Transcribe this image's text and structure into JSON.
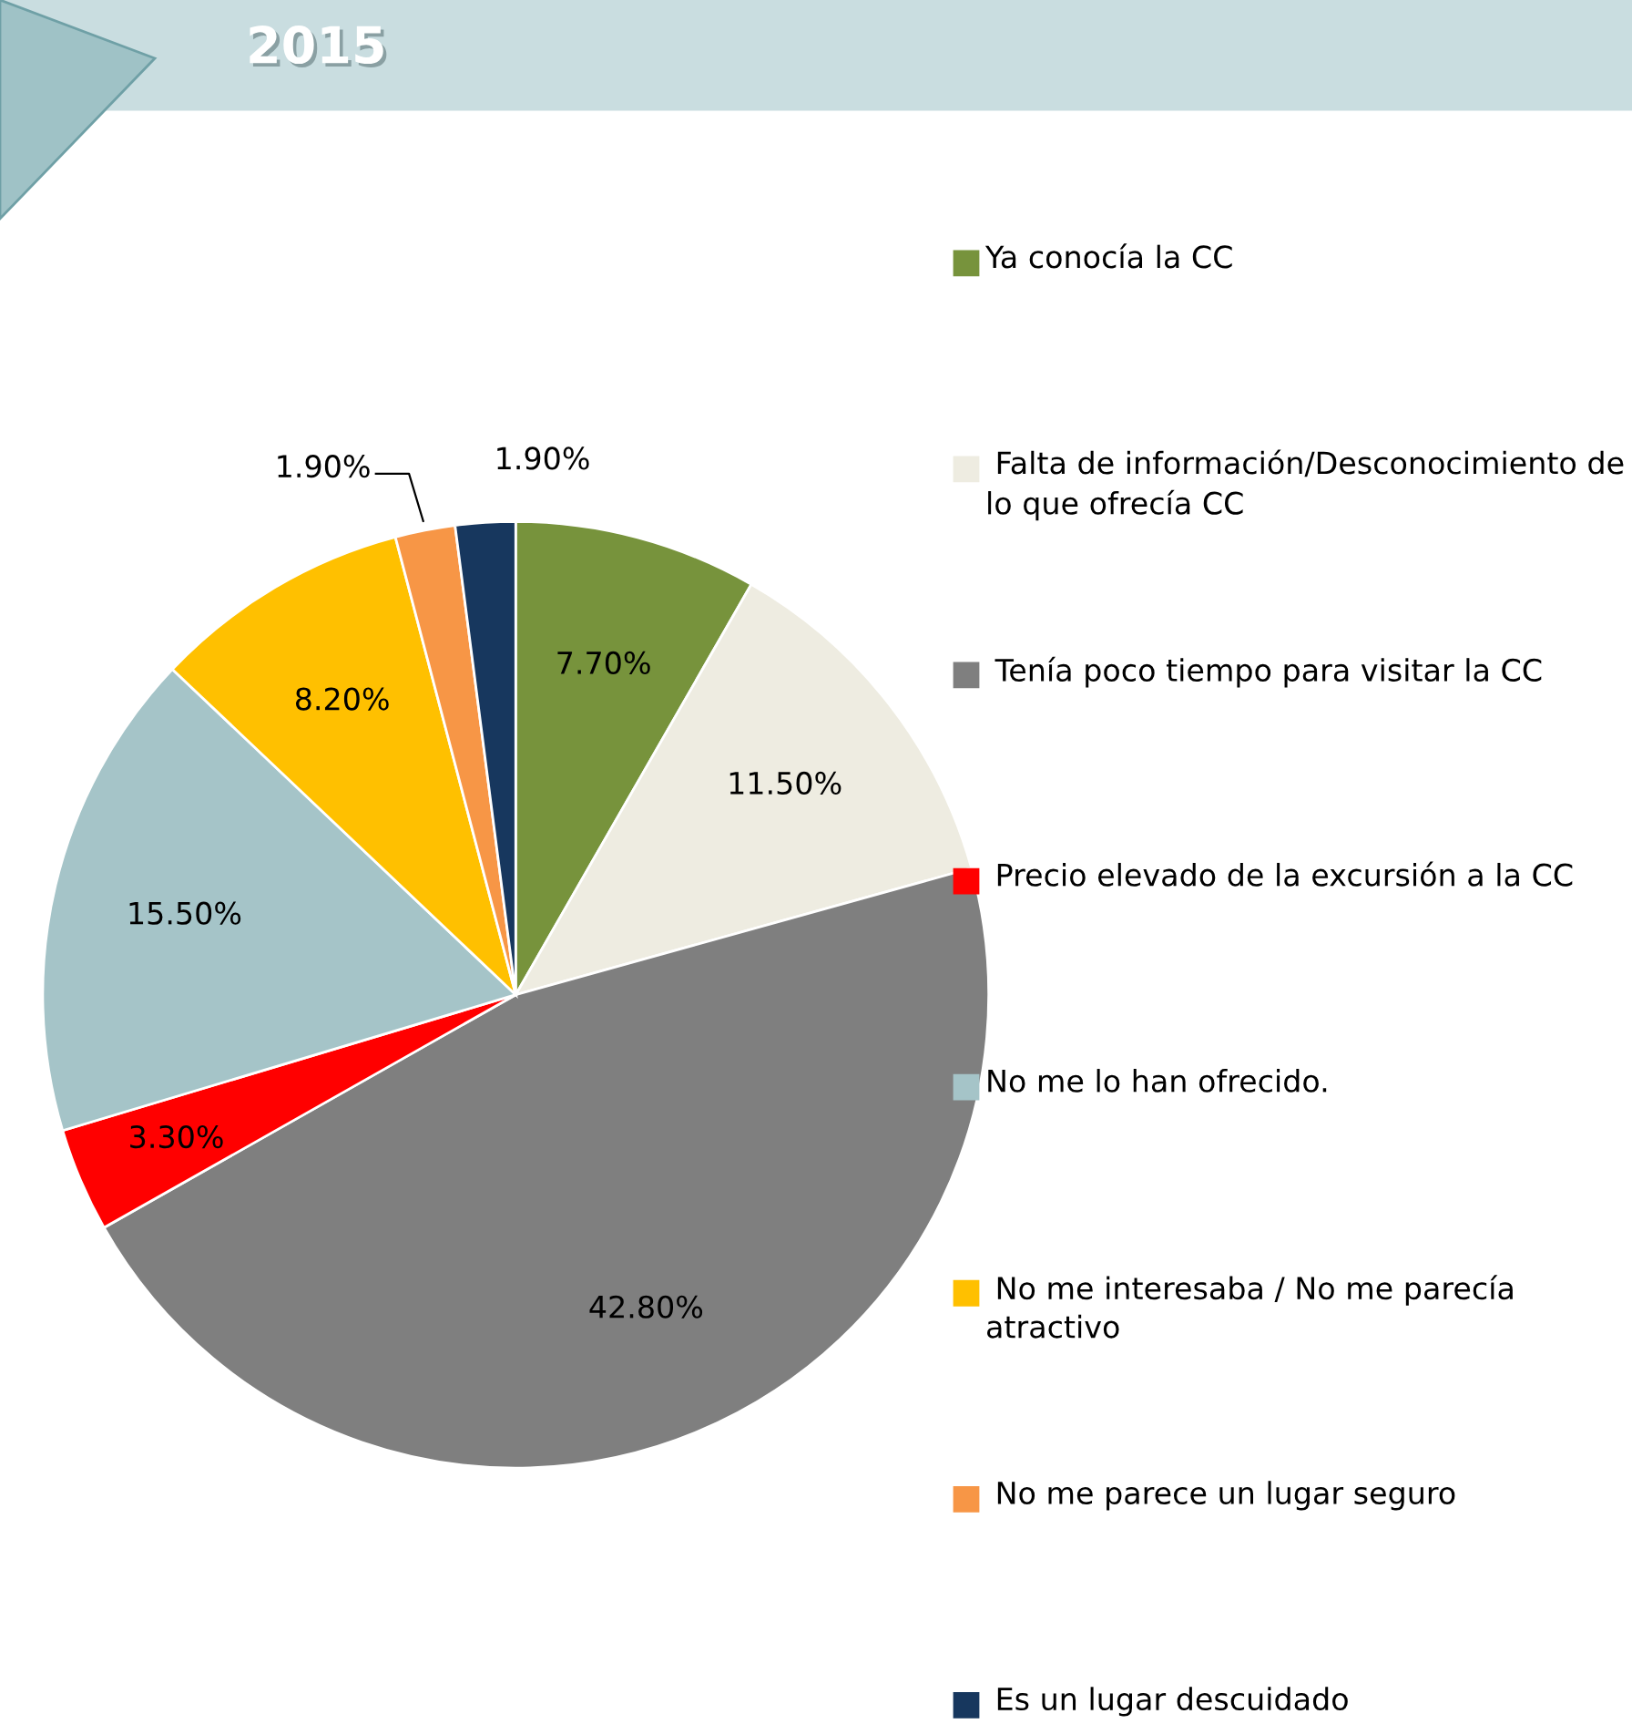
{
  "chart_data": {
    "type": "pie",
    "title": "2015",
    "categories": [
      "Ya conocía la CC",
      " Falta de información/Desconocimiento de lo que ofrecía CC",
      " Tenía poco tiempo para visitar la CC",
      " Precio elevado de la excursión a la CC",
      "No me lo han ofrecido.",
      " No me interesaba / No me parecía atractivo",
      " No me parece un lugar seguro",
      " Es un lugar descuidado"
    ],
    "values": [
      7.7,
      11.5,
      42.8,
      3.3,
      15.5,
      8.2,
      1.9,
      1.9
    ],
    "value_labels": [
      "7.70%",
      "11.50%",
      "42.80%",
      "3.30%",
      "15.50%",
      "8.20%",
      "1.90%",
      "1.90%"
    ],
    "colors": [
      "#77933c",
      "#eeece1",
      "#7f7f7f",
      "#ff0000",
      "#a5c4c8",
      "#ffc000",
      "#f79646",
      "#17375e"
    ],
    "legend": "right"
  }
}
